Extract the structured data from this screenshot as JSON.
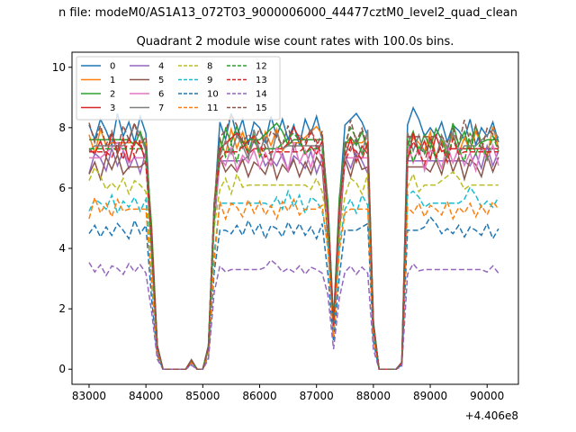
{
  "chart_data": {
    "type": "line",
    "suptitle": "n file: modeM0/AS1A13_072T03_9000006000_44477cztM0_level2_quad_clean",
    "title": "Quadrant 2 module wise count rates with 100.0s bins.",
    "xlabel": "",
    "ylabel": "",
    "x_offset_label": "+4.406e8",
    "xlim": [
      82700,
      90550
    ],
    "ylim": [
      -0.5,
      10.5
    ],
    "x_ticks": [
      83000,
      84000,
      85000,
      86000,
      87000,
      88000,
      89000,
      90000
    ],
    "x_tick_labels": [
      "83000",
      "84000",
      "85000",
      "86000",
      "87000",
      "88000",
      "89000",
      "90000"
    ],
    "y_ticks": [
      0,
      2,
      4,
      6,
      8,
      10
    ],
    "y_tick_labels": [
      "0",
      "2",
      "4",
      "6",
      "8",
      "10"
    ],
    "x": [
      83000,
      83100,
      83200,
      83300,
      83400,
      83500,
      83600,
      83700,
      83800,
      83900,
      84000,
      84100,
      84200,
      84300,
      84400,
      84500,
      84600,
      84700,
      84800,
      84900,
      85000,
      85100,
      85200,
      85300,
      85400,
      85500,
      85600,
      85700,
      85800,
      85900,
      86000,
      86100,
      86200,
      86300,
      86400,
      86500,
      86600,
      86700,
      86800,
      86900,
      87000,
      87100,
      87200,
      87300,
      87400,
      87500,
      87600,
      87700,
      87800,
      87900,
      88000,
      88100,
      88200,
      88300,
      88400,
      88500,
      88600,
      88700,
      88800,
      88900,
      89000,
      89100,
      89200,
      89300,
      89400,
      89500,
      89600,
      89700,
      89800,
      89900,
      90000,
      90100,
      90200
    ],
    "shape": [
      1.0,
      1.0,
      1.0,
      1.0,
      1.0,
      1.0,
      1.0,
      1.0,
      1.0,
      1.0,
      1.0,
      0.55,
      0.1,
      0.0,
      0.0,
      0.0,
      0.0,
      0.0,
      0.04,
      0.0,
      0.0,
      0.1,
      0.7,
      1.0,
      1.0,
      1.0,
      1.0,
      1.0,
      1.0,
      1.0,
      1.0,
      1.0,
      1.0,
      1.0,
      1.0,
      1.0,
      1.0,
      1.0,
      1.0,
      1.0,
      1.0,
      1.0,
      0.7,
      0.2,
      0.7,
      1.0,
      1.0,
      1.0,
      1.0,
      1.0,
      0.2,
      0.0,
      0.0,
      0.0,
      0.0,
      0.03,
      1.0,
      1.0,
      1.0,
      1.0,
      1.0,
      1.0,
      1.0,
      1.0,
      1.0,
      1.0,
      1.0,
      1.0,
      1.0,
      1.0,
      1.0,
      1.0,
      1.0
    ],
    "noise": [
      0.02,
      -0.03,
      0.04,
      0.0,
      -0.05,
      0.06,
      -0.02,
      0.03,
      -0.04,
      0.05,
      -0.01,
      0.0,
      0.0,
      0.0,
      0.0,
      0.0,
      0.0,
      0.0,
      0.0,
      0.0,
      0.0,
      0.0,
      -0.02,
      0.03,
      -0.03,
      0.06,
      -0.02,
      0.04,
      -0.05,
      0.03,
      0.01,
      -0.04,
      0.05,
      -0.02,
      0.04,
      -0.03,
      0.02,
      -0.05,
      0.04,
      -0.01,
      0.05,
      -0.03,
      0.0,
      0.0,
      0.0,
      0.02,
      0.04,
      0.06,
      0.03,
      -0.02,
      0.0,
      0.0,
      0.0,
      0.0,
      0.0,
      0.0,
      0.02,
      0.08,
      0.04,
      -0.02,
      0.01,
      -0.02,
      0.03,
      -0.04,
      0.02,
      0.0,
      -0.03,
      0.04,
      -0.05,
      0.01,
      -0.02,
      0.03,
      -0.04
    ],
    "series": [
      {
        "name": "0",
        "level": 7.9,
        "color": "#1f77b4",
        "dash": ""
      },
      {
        "name": "1",
        "level": 7.5,
        "color": "#ff7f0e",
        "dash": ""
      },
      {
        "name": "2",
        "level": 7.6,
        "color": "#2ca02c",
        "dash": ""
      },
      {
        "name": "3",
        "level": 7.3,
        "color": "#d62728",
        "dash": ""
      },
      {
        "name": "4",
        "level": 6.9,
        "color": "#9467bd",
        "dash": ""
      },
      {
        "name": "5",
        "level": 6.7,
        "color": "#8c564b",
        "dash": ""
      },
      {
        "name": "6",
        "level": 7.0,
        "color": "#e377c2",
        "dash": ""
      },
      {
        "name": "7",
        "level": 7.4,
        "color": "#7f7f7f",
        "dash": ""
      },
      {
        "name": "8",
        "level": 6.1,
        "color": "#bcbd22",
        "dash": "6,3"
      },
      {
        "name": "9",
        "level": 5.5,
        "color": "#17becf",
        "dash": "6,3"
      },
      {
        "name": "10",
        "level": 4.6,
        "color": "#1f77b4",
        "dash": "6,3"
      },
      {
        "name": "11",
        "level": 5.3,
        "color": "#ff7f0e",
        "dash": "6,3"
      },
      {
        "name": "12",
        "level": 7.3,
        "color": "#2ca02c",
        "dash": "6,3"
      },
      {
        "name": "13",
        "level": 7.2,
        "color": "#d62728",
        "dash": "6,3"
      },
      {
        "name": "14",
        "level": 3.3,
        "color": "#9467bd",
        "dash": "6,3"
      },
      {
        "name": "15",
        "level": 7.7,
        "color": "#8c564b",
        "dash": "6,3"
      }
    ],
    "legend_placement": "top-left",
    "legend_columns": 4,
    "grid": false
  }
}
